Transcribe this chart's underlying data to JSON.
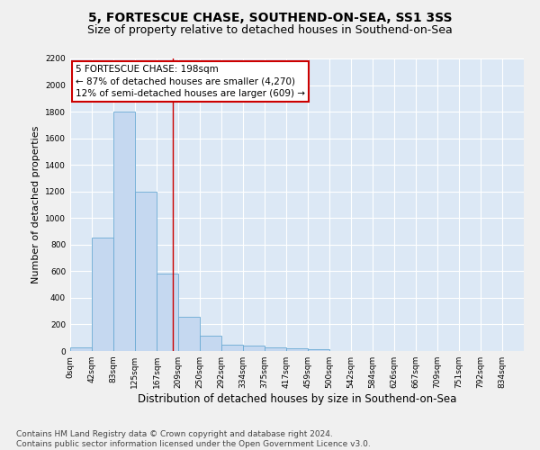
{
  "title": "5, FORTESCUE CHASE, SOUTHEND-ON-SEA, SS1 3SS",
  "subtitle": "Size of property relative to detached houses in Southend-on-Sea",
  "xlabel": "Distribution of detached houses by size in Southend-on-Sea",
  "ylabel": "Number of detached properties",
  "bar_labels": [
    "0sqm",
    "42sqm",
    "83sqm",
    "125sqm",
    "167sqm",
    "209sqm",
    "250sqm",
    "292sqm",
    "334sqm",
    "375sqm",
    "417sqm",
    "459sqm",
    "500sqm",
    "542sqm",
    "584sqm",
    "626sqm",
    "667sqm",
    "709sqm",
    "751sqm",
    "792sqm",
    "834sqm"
  ],
  "bar_values": [
    25,
    850,
    1800,
    1200,
    580,
    255,
    115,
    45,
    40,
    27,
    20,
    15,
    0,
    0,
    0,
    0,
    0,
    0,
    0,
    0,
    0
  ],
  "bar_color": "#c5d8f0",
  "bar_edge_color": "#6aaad4",
  "background_color": "#dce8f5",
  "grid_color": "#ffffff",
  "annotation_line1": "5 FORTESCUE CHASE: 198sqm",
  "annotation_line2": "← 87% of detached houses are smaller (4,270)",
  "annotation_line3": "12% of semi-detached houses are larger (609) →",
  "annotation_box_color": "#ffffff",
  "annotation_border_color": "#cc0000",
  "red_line_x": 198,
  "ylim": [
    0,
    2200
  ],
  "yticks": [
    0,
    200,
    400,
    600,
    800,
    1000,
    1200,
    1400,
    1600,
    1800,
    2000,
    2200
  ],
  "footer_line1": "Contains HM Land Registry data © Crown copyright and database right 2024.",
  "footer_line2": "Contains public sector information licensed under the Open Government Licence v3.0.",
  "title_fontsize": 10,
  "subtitle_fontsize": 9,
  "xlabel_fontsize": 8.5,
  "ylabel_fontsize": 8,
  "tick_fontsize": 6.5,
  "annotation_fontsize": 7.5,
  "footer_fontsize": 6.5
}
